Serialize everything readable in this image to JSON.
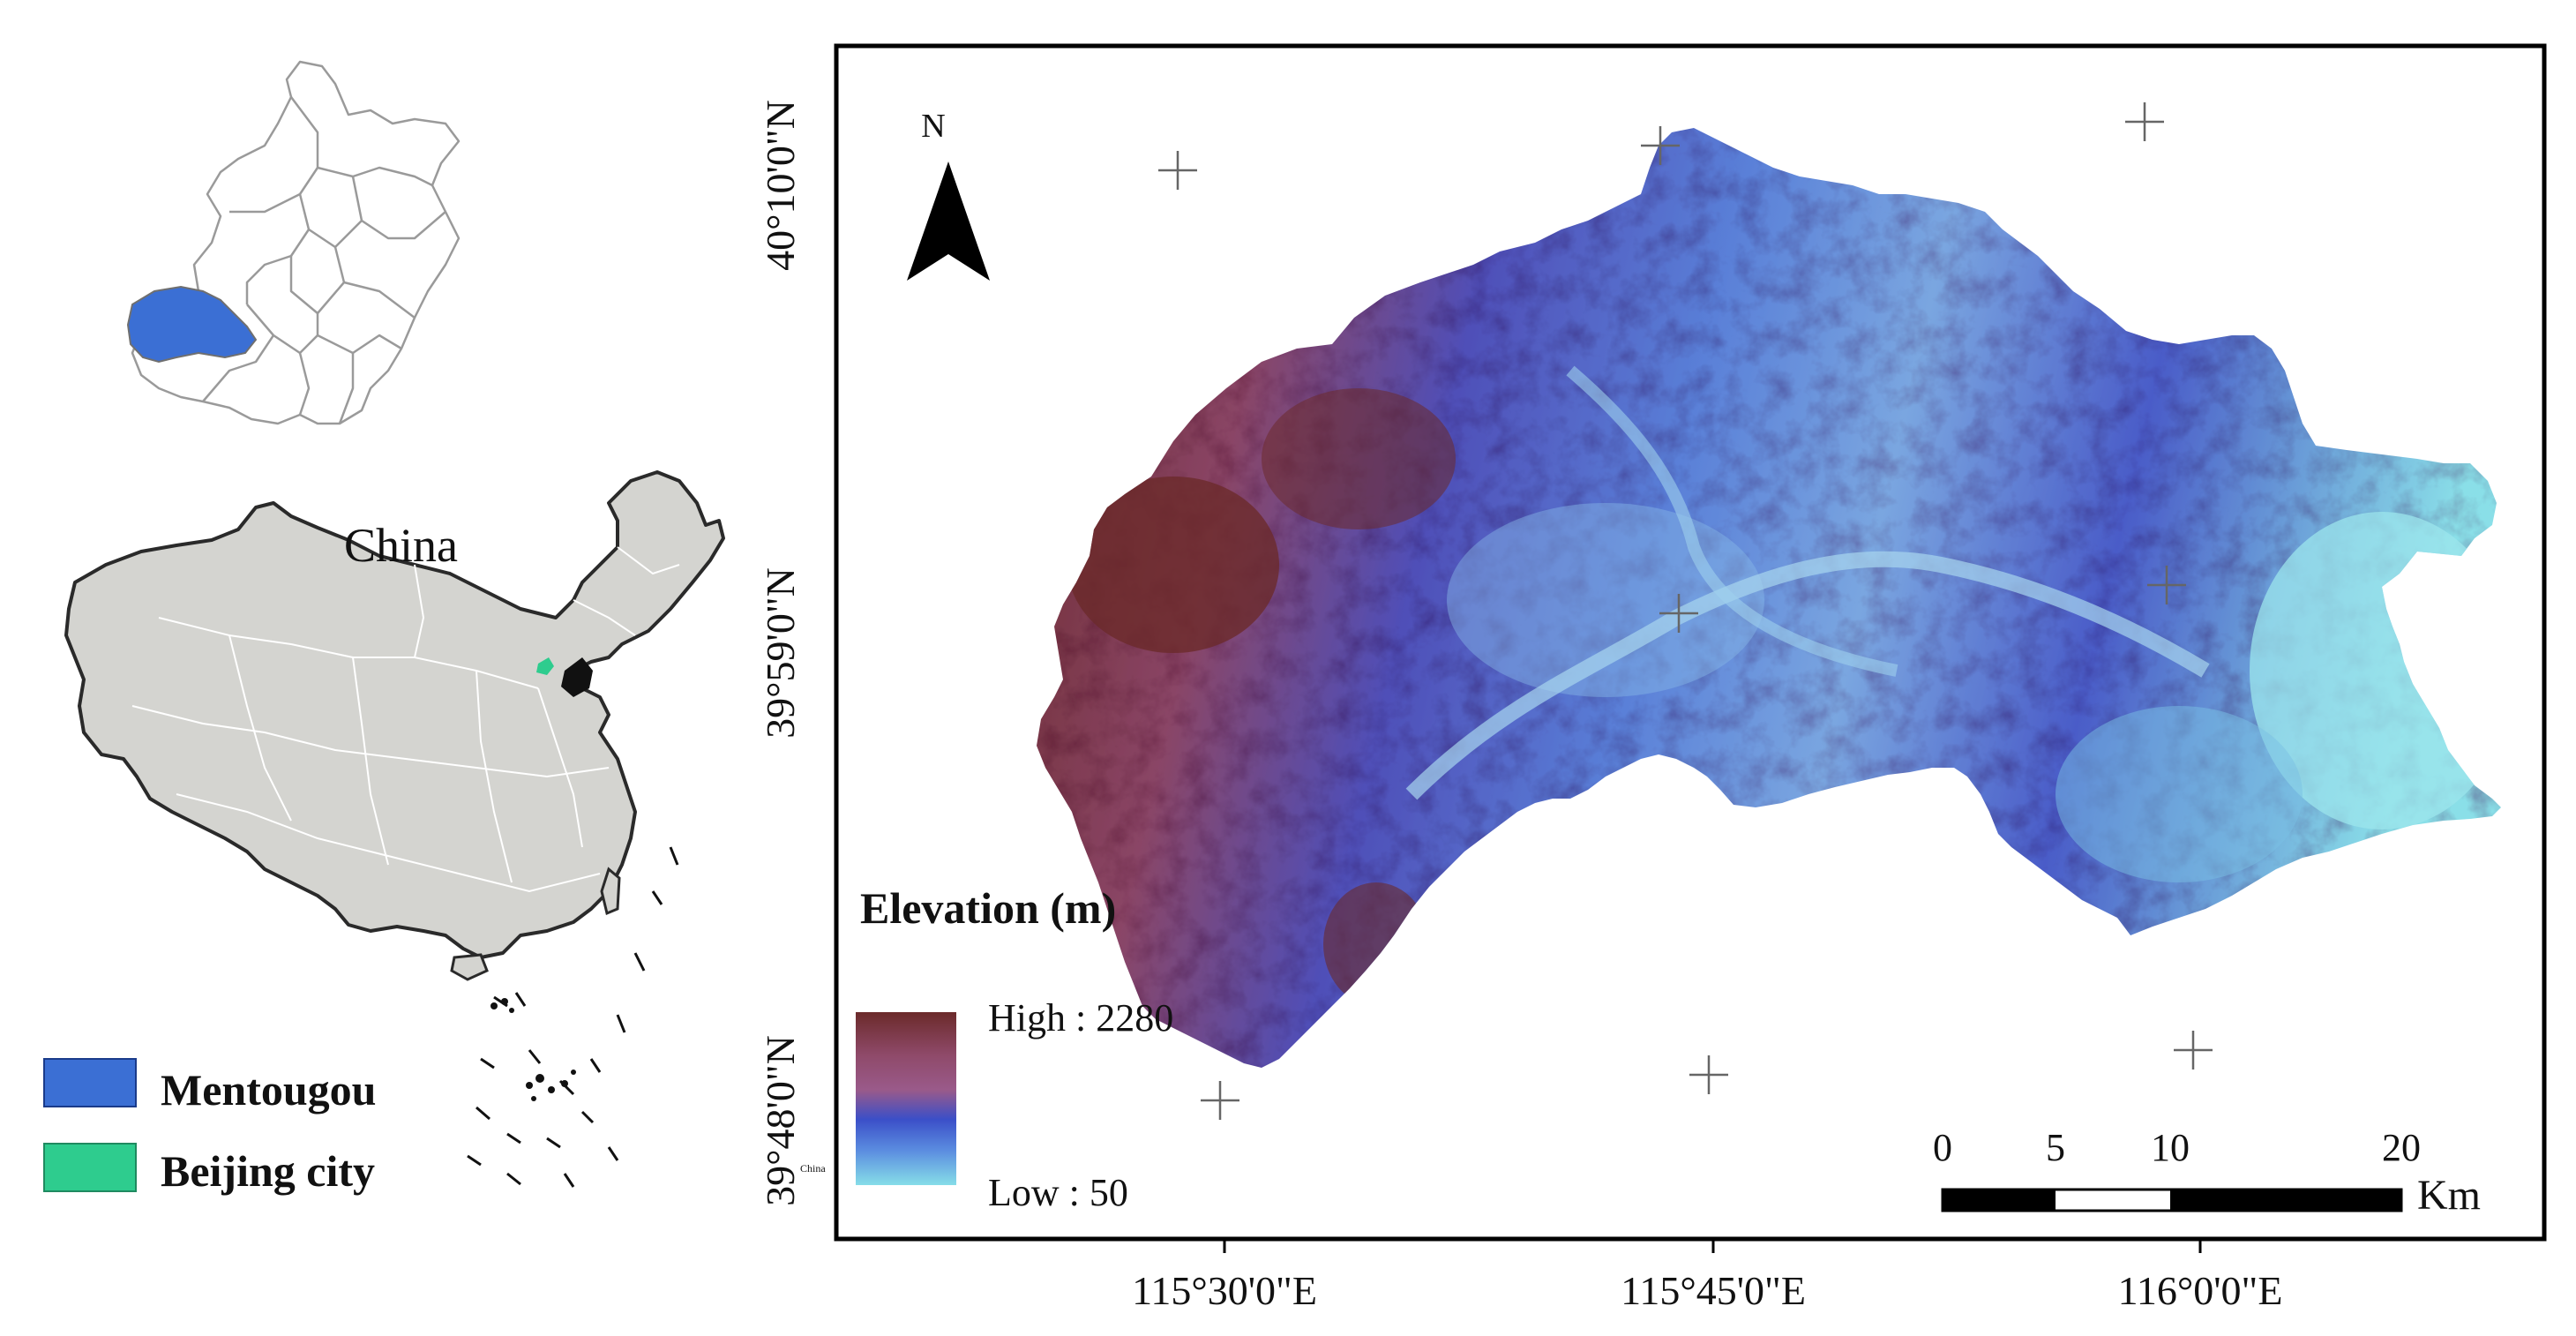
{
  "china_label": "China",
  "china_small_label": "China",
  "legend_left": {
    "items": [
      {
        "label": "Mentougou",
        "color": "#3b6fd4"
      },
      {
        "label": "Beijing city",
        "color": "#2ecc8e"
      }
    ]
  },
  "elevation_legend": {
    "title": "Elevation (m)",
    "high_label": "High : 2280",
    "low_label": "Low : 50",
    "high_value": 2280,
    "low_value": 50,
    "ramp_colors": [
      "#6b2a2a",
      "#8f4a6a",
      "#9a5a8a",
      "#3b4fc8",
      "#5b8de0",
      "#86dde8"
    ]
  },
  "north_arrow": {
    "label": "N"
  },
  "scale_bar": {
    "ticks": [
      "0",
      "5",
      "10",
      "20"
    ],
    "unit": "Km"
  },
  "axes": {
    "lat_labels": [
      "40°10'0\"N",
      "39°59'0\"N",
      "39°48'0\"N"
    ],
    "lon_labels": [
      "115°30'0\"E",
      "115°45'0\"E",
      "116°0'0\"E"
    ]
  },
  "colors": {
    "mentougou": "#3b6fd4",
    "beijing_city": "#2ecc8e",
    "china_fill": "#d4d4d0",
    "frame": "#000000"
  }
}
